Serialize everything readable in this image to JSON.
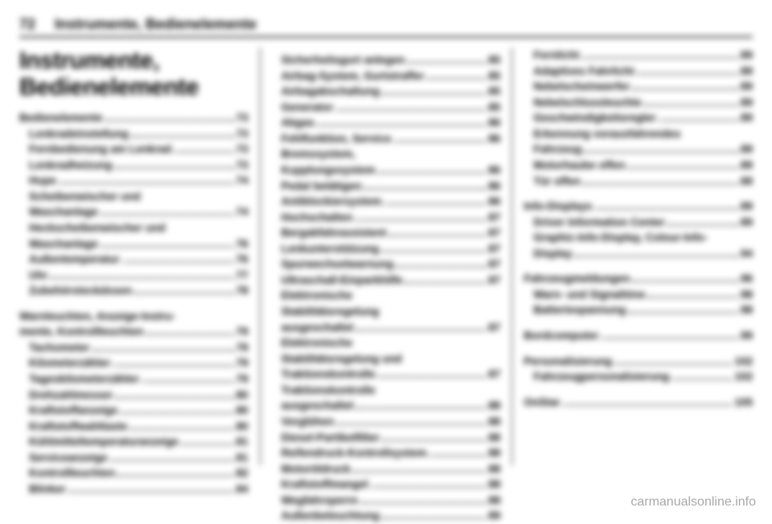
{
  "header": {
    "page_number": "72",
    "running_title": "Instrumente, Bedienelemente"
  },
  "chapter_title": "Instrumente, Bedienelemente",
  "watermark": "carmanualsonline.info",
  "col1": {
    "sections": [
      {
        "heading": {
          "label": "Bedienelemente",
          "pg": "73"
        },
        "items": [
          {
            "label": "Lenkradeinstellung",
            "pg": "73"
          },
          {
            "label": "Fernbedienung am Lenkrad",
            "pg": "73"
          },
          {
            "label": "Lenkradheizung",
            "pg": "73"
          },
          {
            "label": "Hupe",
            "pg": "74"
          },
          {
            "label": "Scheibenwischer und",
            "nopage": true
          },
          {
            "label": "Waschanlage",
            "pg": "74",
            "indent": true
          },
          {
            "label": "Heckscheibenwischer und",
            "nopage": true
          },
          {
            "label": "Waschanlage",
            "pg": "76",
            "indent": true
          },
          {
            "label": "Außentemperatur",
            "pg": "76"
          },
          {
            "label": "Uhr",
            "pg": "77"
          },
          {
            "label": "Zubehörsteckdosen",
            "pg": "78"
          }
        ]
      },
      {
        "heading": {
          "label": "Warnleuchten, Anzeige-Instrumente, Kontrollleuchten",
          "pg": "79",
          "multiline": true
        },
        "items": [
          {
            "label": "Tachometer",
            "pg": "79"
          },
          {
            "label": "Kilometerzähler",
            "pg": "79"
          },
          {
            "label": "Tageskilometerzähler",
            "pg": "79"
          },
          {
            "label": "Drehzahlmesser",
            "pg": "80"
          },
          {
            "label": "Kraftstoffanzeige",
            "pg": "80"
          },
          {
            "label": "Kraftstoffwahltaste",
            "pg": "80"
          },
          {
            "label": "Kühlmitteltemperaturanzeige",
            "pg": "81"
          },
          {
            "label": "Serviceanzeige",
            "pg": "81"
          },
          {
            "label": "Kontrollleuchten",
            "pg": "82"
          },
          {
            "label": "Blinker",
            "pg": "84"
          }
        ]
      }
    ]
  },
  "col2": {
    "items": [
      {
        "label": "Sicherheitsgurt anlegen",
        "pg": "85"
      },
      {
        "label": "Airbag-System, Gurtstraffer",
        "pg": "85"
      },
      {
        "label": "Airbagabschaltung",
        "pg": "85"
      },
      {
        "label": "Generator",
        "pg": "85"
      },
      {
        "label": "Abgas",
        "pg": "86"
      },
      {
        "label": "Fehlfunktion, Service",
        "pg": "86"
      },
      {
        "label": "Bremssystem,",
        "nopage": true
      },
      {
        "label": "Kupplungssystem",
        "pg": "86",
        "indent": true
      },
      {
        "label": "Pedal betätigen",
        "pg": "86"
      },
      {
        "label": "Antiblockiersystem",
        "pg": "86"
      },
      {
        "label": "Hochschalten",
        "pg": "87"
      },
      {
        "label": "Bergabfahrassistent",
        "pg": "87"
      },
      {
        "label": "Lenkunterstützung",
        "pg": "87"
      },
      {
        "label": "Spurwechselwarnung",
        "pg": "87"
      },
      {
        "label": "Ultraschall-Einparkhilfe",
        "pg": "87"
      },
      {
        "label": "Elektronische",
        "nopage": true
      },
      {
        "label": "Stabilitätsregelung",
        "nopage": true,
        "indent": true
      },
      {
        "label": "ausgeschaltet",
        "pg": "87",
        "indent": true
      },
      {
        "label": "Elektronische",
        "nopage": true
      },
      {
        "label": "Stabilitätsregelung und",
        "nopage": true,
        "indent": true
      },
      {
        "label": "Traktionskontrolle",
        "pg": "87",
        "indent": true
      },
      {
        "label": "Traktionskontrolle",
        "nopage": true
      },
      {
        "label": "ausgeschaltet",
        "pg": "88",
        "indent": true
      },
      {
        "label": "Vorglühen",
        "pg": "88"
      },
      {
        "label": "Diesel-Partikelfilter",
        "pg": "88"
      },
      {
        "label": "Reifendruck-Kontrollsystem",
        "pg": "88"
      },
      {
        "label": "Motoröldruck",
        "pg": "88"
      },
      {
        "label": "Kraftstoffmangel",
        "pg": "88"
      },
      {
        "label": "Wegfahrsperre",
        "pg": "88"
      },
      {
        "label": "Außenbeleuchtung",
        "pg": "89"
      }
    ]
  },
  "col3": {
    "groups": [
      {
        "items": [
          {
            "label": "Fernlicht",
            "pg": "89"
          },
          {
            "label": "Adaptives Fahrlicht",
            "pg": "89"
          },
          {
            "label": "Nebelscheinwerfer",
            "pg": "89"
          },
          {
            "label": "Nebelschlussleuchte",
            "pg": "89"
          },
          {
            "label": "Geschwindigkeitsregler",
            "pg": "89"
          },
          {
            "label": "Erkennung vorausfahrendes",
            "nopage": true
          },
          {
            "label": "Fahrzeug",
            "pg": "89",
            "indent": true
          },
          {
            "label": "Motorhaube offen",
            "pg": "89"
          },
          {
            "label": "Tür offen",
            "pg": "89"
          }
        ]
      },
      {
        "heading": {
          "label": "Info-Displays",
          "pg": "89"
        },
        "items": [
          {
            "label": "Driver Information Center",
            "pg": "89"
          },
          {
            "label": "Graphic-Info-Display, Colour-Info-",
            "nopage": true
          },
          {
            "label": "Display",
            "pg": "94",
            "indent": true
          }
        ]
      },
      {
        "heading": {
          "label": "Fahrzeugmeldungen",
          "pg": "96"
        },
        "items": [
          {
            "label": "Warn- und Signaltöne",
            "pg": "98"
          },
          {
            "label": "Batteriespannung",
            "pg": "98"
          }
        ]
      },
      {
        "heading": {
          "label": "Bordcomputer",
          "pg": "99"
        },
        "items": []
      },
      {
        "heading": {
          "label": "Personalisierung",
          "pg": "102"
        },
        "items": [
          {
            "label": "Fahrzeugpersonalisierung",
            "pg": "102"
          }
        ]
      },
      {
        "heading": {
          "label": "OnStar",
          "pg": "105"
        },
        "items": []
      }
    ]
  }
}
